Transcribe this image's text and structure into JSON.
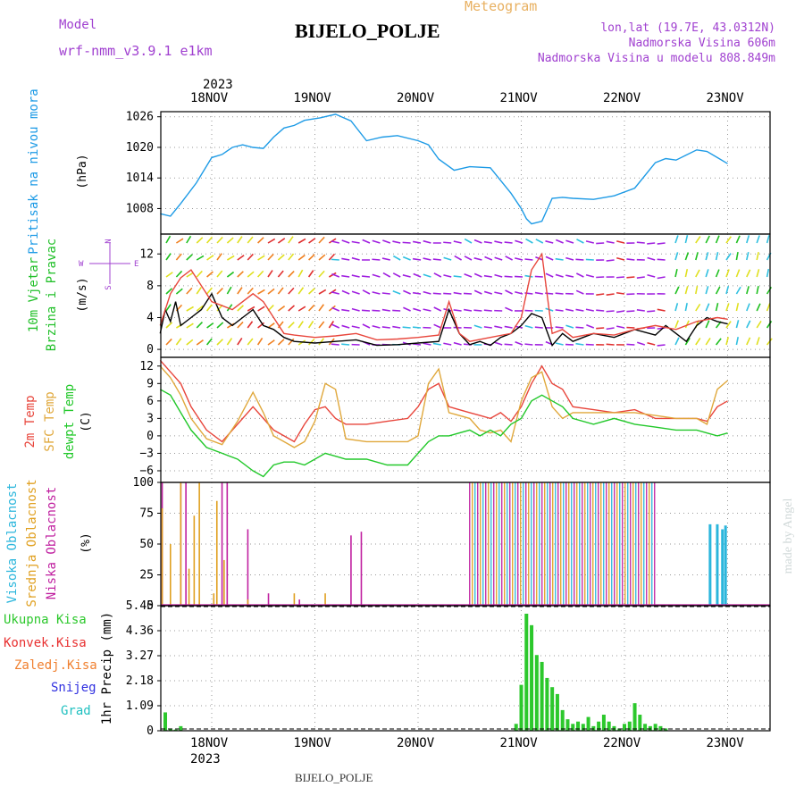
{
  "header": {
    "model_label": "Model",
    "model_name": "wrf-nmm_v3.9.1 e1km",
    "title": "BIJELO_POLJE",
    "product": "Meteogram",
    "coords": "lon,lat (19.7E, 43.0312N)",
    "elevation": "Nadmorska Visina 606m",
    "model_elevation": "Nadmorska Visina u modelu 808.849m",
    "footer_station": "BIJELO_POLJE",
    "watermark": "made by Angel"
  },
  "colors": {
    "pressure": "#1e9be6",
    "wind_label": "#22c02a",
    "t2m": "#e8463c",
    "sfc": "#e0a83c",
    "dew": "#22c82a",
    "high_cloud": "#2bb6dc",
    "mid_cloud": "#e0a020",
    "low_cloud": "#c020a0",
    "precip_total": "#2cc82c",
    "precip_conv": "#e83030",
    "precip_frz": "#f08030",
    "precip_snow": "#3030e0",
    "precip_grad": "#20c0c0",
    "purple": "#a040d0"
  },
  "chart_data": {
    "type": "meteogram",
    "year_label": "2023",
    "x_days": [
      "18NOV",
      "19NOV",
      "20NOV",
      "21NOV",
      "22NOV",
      "23NOV"
    ],
    "panels": [
      {
        "id": "pressure",
        "type": "line",
        "ylabel_title": "Pritisak na nivou mora",
        "ylabel_unit": "(hPa)",
        "yticks": [
          "1026",
          "1020",
          "1014",
          "1008"
        ],
        "ylim": [
          1003,
          1027
        ],
        "series": [
          {
            "name": "",
            "x": [
              0,
              0.1,
              0.2,
              0.35,
              0.5,
              0.6,
              0.7,
              0.8,
              0.9,
              1.0,
              1.1,
              1.2,
              1.3,
              1.4,
              1.55,
              1.7,
              1.85,
              2.0,
              2.15,
              2.3,
              2.5,
              2.6,
              2.7,
              2.85,
              3.0,
              3.2,
              3.4,
              3.5,
              3.55,
              3.6,
              3.7,
              3.8,
              3.9,
              4.0,
              4.2,
              4.4,
              4.6,
              4.8,
              4.9,
              5.0,
              5.1,
              5.2,
              5.3,
              5.4,
              5.5
            ],
            "y": [
              1007,
              1006.5,
              1009,
              1013,
              1018,
              1018.6,
              1020,
              1020.5,
              1020,
              1019.8,
              1022,
              1023.8,
              1024.3,
              1025.3,
              1025.8,
              1026.5,
              1025.2,
              1021.3,
              1022,
              1022.3,
              1021.3,
              1020.5,
              1017.7,
              1015.5,
              1016.2,
              1016,
              1011,
              1008,
              1006,
              1005,
              1005.5,
              1010,
              1010.2,
              1010,
              1009.8,
              1010.5,
              1012,
              1017,
              1017.8,
              1017.5,
              1018.5,
              1019.5,
              1019.2,
              1018,
              1016.8
            ]
          }
        ]
      },
      {
        "id": "wind",
        "type": "line",
        "ylabel_title": "10m Vjetar",
        "ylabel_title2": "Brzina i Pravac",
        "ylabel_unit": "(m/s)",
        "compass": "N, E, S, W",
        "yticks": [
          "12",
          "8",
          "4",
          "0"
        ],
        "ylim": [
          -1,
          14.5
        ],
        "series": [
          {
            "name": "",
            "x": [
              0,
              0.05,
              0.1,
              0.15,
              0.2,
              0.3,
              0.4,
              0.5,
              0.6,
              0.7,
              0.8,
              0.9,
              1.0,
              1.1,
              1.2,
              1.3,
              1.5,
              1.7,
              1.9,
              2.1,
              2.3,
              2.5,
              2.7,
              2.8,
              2.9,
              3.0,
              3.1,
              3.2,
              3.3,
              3.4,
              3.5,
              3.6,
              3.7,
              3.8,
              3.9,
              4.0,
              4.1,
              4.2,
              4.4,
              4.6,
              4.8,
              4.9,
              5.0,
              5.1,
              5.2,
              5.3,
              5.4,
              5.5
            ],
            "y": [
              2,
              5,
              3.5,
              6,
              3,
              4,
              5,
              7,
              4,
              3,
              4,
              5,
              3,
              2.5,
              1.5,
              1,
              0.8,
              1,
              1.2,
              0.5,
              0.6,
              0.8,
              1,
              5,
              2,
              0.6,
              1,
              0.5,
              1.5,
              2,
              3,
              4.5,
              4,
              0.5,
              2,
              1,
              1.5,
              2,
              1.5,
              2.5,
              1.8,
              3,
              2,
              1,
              3,
              4,
              3.5,
              3.2
            ]
          },
          {
            "name": "",
            "x": [
              0,
              0.1,
              0.2,
              0.3,
              0.5,
              0.7,
              0.9,
              1.0,
              1.1,
              1.2,
              1.3,
              1.5,
              1.7,
              1.9,
              2.1,
              2.3,
              2.5,
              2.7,
              2.8,
              2.9,
              3.0,
              3.2,
              3.4,
              3.5,
              3.6,
              3.7,
              3.8,
              3.9,
              4.0,
              4.2,
              4.4,
              4.6,
              4.8,
              5.0,
              5.2,
              5.4,
              5.5
            ],
            "y": [
              3,
              7,
              9,
              10,
              6,
              5,
              7,
              6,
              4,
              2,
              1.8,
              1.5,
              1.7,
              2,
              1.2,
              1.3,
              1.5,
              1.8,
              6,
              2,
              1,
              1.5,
              2,
              4,
              10,
              12,
              2,
              2.5,
              1.5,
              2,
              1.8,
              2.5,
              3,
              2.5,
              3.5,
              4,
              3.8
            ]
          }
        ]
      },
      {
        "id": "temp",
        "type": "line",
        "ylabel_title": "2m Temp",
        "ylabel_title2": "SFC Temp",
        "ylabel_title3": "dewpt Temp",
        "ylabel_unit": "(C)",
        "yticks": [
          "12",
          "9",
          "6",
          "3",
          "0",
          "−3",
          "−6"
        ],
        "ylim": [
          -8,
          13.5
        ],
        "series": [
          {
            "name": "",
            "x": [
              0,
              0.1,
              0.2,
              0.3,
              0.45,
              0.6,
              0.75,
              0.9,
              1.0,
              1.1,
              1.2,
              1.3,
              1.4,
              1.5,
              1.6,
              1.7,
              1.8,
              2.0,
              2.2,
              2.4,
              2.5,
              2.6,
              2.7,
              2.8,
              3.0,
              3.1,
              3.2,
              3.3,
              3.4,
              3.5,
              3.6,
              3.7,
              3.8,
              3.9,
              4.0,
              4.2,
              4.4,
              4.6,
              4.8,
              5.0,
              5.2,
              5.3,
              5.4,
              5.5
            ],
            "y": [
              13,
              11,
              9,
              5,
              1,
              -1,
              2,
              5,
              3,
              1,
              0,
              -1,
              2,
              4.5,
              5,
              3,
              2,
              2,
              2.5,
              3,
              5,
              8,
              9,
              5,
              4,
              3.5,
              3,
              4,
              2.5,
              5,
              9,
              12,
              9,
              8,
              5,
              4.5,
              4,
              4.5,
              3,
              3,
              3,
              2.5,
              5,
              6
            ]
          },
          {
            "name": "",
            "x": [
              0,
              0.1,
              0.2,
              0.3,
              0.45,
              0.6,
              0.75,
              0.9,
              1.0,
              1.1,
              1.2,
              1.3,
              1.4,
              1.5,
              1.6,
              1.7,
              1.8,
              2.0,
              2.2,
              2.4,
              2.5,
              2.6,
              2.7,
              2.8,
              3.0,
              3.1,
              3.2,
              3.3,
              3.4,
              3.5,
              3.6,
              3.7,
              3.8,
              3.9,
              4.0,
              4.2,
              4.4,
              4.6,
              4.8,
              5.0,
              5.2,
              5.3,
              5.4,
              5.5
            ],
            "y": [
              12,
              10,
              7,
              3,
              -0.5,
              -1.5,
              2.5,
              7.5,
              4,
              0,
              -1,
              -2,
              -1,
              2.5,
              9,
              8,
              -0.5,
              -1,
              -1,
              -1,
              0,
              9,
              11.5,
              4,
              3,
              1,
              0.5,
              1,
              -1,
              6,
              10,
              11,
              5,
              3,
              4,
              4,
              4,
              4,
              3.5,
              3,
              3,
              2,
              8,
              9.5
            ]
          },
          {
            "name": "",
            "x": [
              0,
              0.1,
              0.2,
              0.3,
              0.45,
              0.6,
              0.75,
              0.9,
              1.0,
              1.1,
              1.2,
              1.3,
              1.4,
              1.5,
              1.6,
              1.7,
              1.8,
              2.0,
              2.2,
              2.4,
              2.5,
              2.6,
              2.7,
              2.8,
              3.0,
              3.1,
              3.2,
              3.3,
              3.4,
              3.5,
              3.6,
              3.7,
              3.8,
              3.9,
              4.0,
              4.2,
              4.4,
              4.6,
              4.8,
              5.0,
              5.2,
              5.3,
              5.4,
              5.5
            ],
            "y": [
              8,
              7,
              4,
              1,
              -2,
              -3,
              -4,
              -6,
              -7,
              -5,
              -4.5,
              -4.5,
              -5,
              -4,
              -3,
              -3.5,
              -4,
              -4,
              -5,
              -5,
              -3,
              -1,
              0,
              0,
              1,
              0,
              1,
              0,
              2,
              3,
              6,
              7,
              6,
              5,
              3,
              2,
              3,
              2,
              1.5,
              1,
              1,
              0.5,
              0,
              0.5
            ]
          }
        ]
      },
      {
        "id": "cloud",
        "type": "bar",
        "ylabel_title": "Visoka Oblacnost",
        "ylabel_title2": "Srednja Oblacnost",
        "ylabel_title3": "Niska Oblacnost",
        "ylabel_unit": "(%)",
        "yticks": [
          "100",
          "75",
          "50",
          "25",
          "0"
        ],
        "ylim": [
          0,
          100
        ],
        "series": [
          {
            "name": "",
            "x": [
              0.02,
              0.2,
              0.25,
              0.6,
              0.65,
              0.85,
              1.05,
              1.35,
              1.45,
              1.65,
              1.7,
              1.75,
              1.85,
              1.95,
              2.0
            ],
            "y": [
              100,
              100,
              100,
              100,
              100,
              62,
              10,
              5,
              0,
              0,
              0,
              0,
              57,
              60,
              0
            ]
          },
          {
            "name": "",
            "x": [
              0.02,
              0.1,
              0.2,
              0.28,
              0.33,
              0.38,
              0.52,
              0.55,
              0.62,
              0.85,
              1.3,
              1.6,
              1.8,
              5.4,
              5.45
            ],
            "y": [
              79,
              50,
              100,
              30,
              73,
              100,
              10,
              85,
              37,
              5,
              10,
              10,
              0,
              40,
              10
            ]
          },
          {
            "name": "",
            "x": [
              5.33,
              5.4,
              5.45,
              5.48
            ],
            "y": [
              66,
              66,
              62,
              65
            ]
          }
        ]
      },
      {
        "id": "precip",
        "type": "bar",
        "ylabel_title": "1hr Precip (mm)",
        "legend": [
          "Ukupna Kisa",
          "Konvek.Kisa",
          "Zaledj.Kisa",
          "Snijeg",
          "Grad"
        ],
        "yticks": [
          "5.45",
          "4.36",
          "3.27",
          "2.18",
          "1.09",
          "0"
        ],
        "ylim": [
          0,
          5.45
        ],
        "series": [
          {
            "name": "Ukupna Kisa",
            "x": [
              0.05,
              0.1,
              0.15,
              0.2,
              3.45,
              3.5,
              3.55,
              3.6,
              3.65,
              3.7,
              3.75,
              3.8,
              3.85,
              3.9,
              3.95,
              4.0,
              4.05,
              4.1,
              4.15,
              4.2,
              4.25,
              4.3,
              4.35,
              4.4,
              4.45,
              4.5,
              4.55,
              4.6,
              4.65,
              4.7,
              4.75,
              4.8,
              4.85,
              4.9
            ],
            "y": [
              0.8,
              0.1,
              0.05,
              0.2,
              0.3,
              2.0,
              5.1,
              4.6,
              3.3,
              3.0,
              2.3,
              1.9,
              1.6,
              0.9,
              0.5,
              0.3,
              0.4,
              0.3,
              0.6,
              0.2,
              0.4,
              0.7,
              0.4,
              0.2,
              0.1,
              0.3,
              0.4,
              1.2,
              0.7,
              0.3,
              0.2,
              0.3,
              0.2,
              0.1
            ]
          }
        ]
      }
    ]
  }
}
